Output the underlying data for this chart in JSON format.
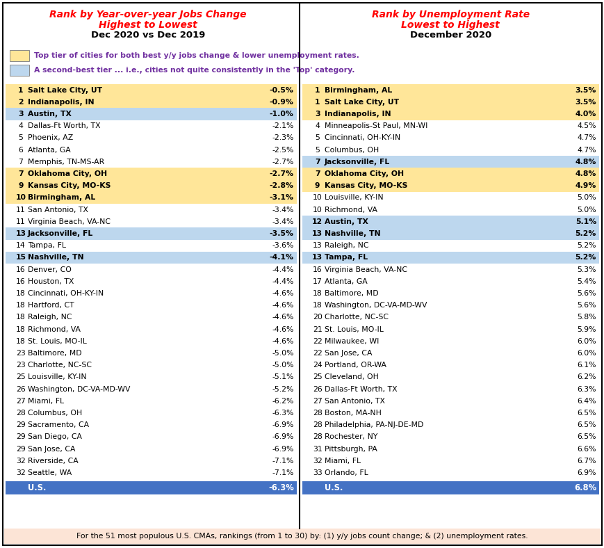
{
  "left_title1": "Rank by Year-over-year Jobs Change",
  "left_title2": "Highest to Lowest",
  "left_subtitle": "Dec 2020 vs Dec 2019",
  "right_title1": "Rank by Unemployment Rate",
  "right_title2": "Lowest to Highest",
  "right_subtitle": "December 2020",
  "legend_gold_text": "Top tier of cities for both best y/y jobs change & lower unemployment rates.",
  "legend_blue_text": "A second-best tier ... i.e., cities not quite consistently in the 'Top' category.",
  "footer_text": "For the 51 most populous U.S. CMAs, rankings (from 1 to 30) by: (1) y/y jobs count change; & (2) unemployment rates.",
  "left_data": [
    {
      "rank": "1",
      "city": "Salt Lake City, UT",
      "value": "-0.5%",
      "bg": "gold"
    },
    {
      "rank": "2",
      "city": "Indianapolis, IN",
      "value": "-0.9%",
      "bg": "gold"
    },
    {
      "rank": "3",
      "city": "Austin, TX",
      "value": "-1.0%",
      "bg": "blue"
    },
    {
      "rank": "4",
      "city": "Dallas-Ft Worth, TX",
      "value": "-2.1%",
      "bg": "white"
    },
    {
      "rank": "5",
      "city": "Phoenix, AZ",
      "value": "-2.3%",
      "bg": "white"
    },
    {
      "rank": "6",
      "city": "Atlanta, GA",
      "value": "-2.5%",
      "bg": "white"
    },
    {
      "rank": "7",
      "city": "Memphis, TN-MS-AR",
      "value": "-2.7%",
      "bg": "white"
    },
    {
      "rank": "7",
      "city": "Oklahoma City, OH",
      "value": "-2.7%",
      "bg": "gold"
    },
    {
      "rank": "9",
      "city": "Kansas City, MO-KS",
      "value": "-2.8%",
      "bg": "gold"
    },
    {
      "rank": "10",
      "city": "Birmingham, AL",
      "value": "-3.1%",
      "bg": "gold"
    },
    {
      "rank": "11",
      "city": "San Antonio, TX",
      "value": "-3.4%",
      "bg": "white"
    },
    {
      "rank": "11",
      "city": "Virginia Beach, VA-NC",
      "value": "-3.4%",
      "bg": "white"
    },
    {
      "rank": "13",
      "city": "Jacksonville, FL",
      "value": "-3.5%",
      "bg": "blue"
    },
    {
      "rank": "14",
      "city": "Tampa, FL",
      "value": "-3.6%",
      "bg": "white"
    },
    {
      "rank": "15",
      "city": "Nashville, TN",
      "value": "-4.1%",
      "bg": "blue"
    },
    {
      "rank": "16",
      "city": "Denver, CO",
      "value": "-4.4%",
      "bg": "white"
    },
    {
      "rank": "16",
      "city": "Houston, TX",
      "value": "-4.4%",
      "bg": "white"
    },
    {
      "rank": "18",
      "city": "Cincinnati, OH-KY-IN",
      "value": "-4.6%",
      "bg": "white"
    },
    {
      "rank": "18",
      "city": "Hartford, CT",
      "value": "-4.6%",
      "bg": "white"
    },
    {
      "rank": "18",
      "city": "Raleigh, NC",
      "value": "-4.6%",
      "bg": "white"
    },
    {
      "rank": "18",
      "city": "Richmond, VA",
      "value": "-4.6%",
      "bg": "white"
    },
    {
      "rank": "18",
      "city": "St. Louis, MO-IL",
      "value": "-4.6%",
      "bg": "white"
    },
    {
      "rank": "23",
      "city": "Baltimore, MD",
      "value": "-5.0%",
      "bg": "white"
    },
    {
      "rank": "23",
      "city": "Charlotte, NC-SC",
      "value": "-5.0%",
      "bg": "white"
    },
    {
      "rank": "25",
      "city": "Louisville, KY-IN",
      "value": "-5.1%",
      "bg": "white"
    },
    {
      "rank": "26",
      "city": "Washington, DC-VA-MD-WV",
      "value": "-5.2%",
      "bg": "white"
    },
    {
      "rank": "27",
      "city": "Miami, FL",
      "value": "-6.2%",
      "bg": "white"
    },
    {
      "rank": "28",
      "city": "Columbus, OH",
      "value": "-6.3%",
      "bg": "white"
    },
    {
      "rank": "29",
      "city": "Sacramento, CA",
      "value": "-6.9%",
      "bg": "white"
    },
    {
      "rank": "29",
      "city": "San Diego, CA",
      "value": "-6.9%",
      "bg": "white"
    },
    {
      "rank": "29",
      "city": "San Jose, CA",
      "value": "-6.9%",
      "bg": "white"
    },
    {
      "rank": "32",
      "city": "Riverside, CA",
      "value": "-7.1%",
      "bg": "white"
    },
    {
      "rank": "32",
      "city": "Seattle, WA",
      "value": "-7.1%",
      "bg": "white"
    }
  ],
  "left_us": {
    "label": "U.S.",
    "value": "-6.3%"
  },
  "right_data": [
    {
      "rank": "1",
      "city": "Birmingham, AL",
      "value": "3.5%",
      "bg": "gold"
    },
    {
      "rank": "1",
      "city": "Salt Lake City, UT",
      "value": "3.5%",
      "bg": "gold"
    },
    {
      "rank": "3",
      "city": "Indianapolis, IN",
      "value": "4.0%",
      "bg": "gold"
    },
    {
      "rank": "4",
      "city": "Minneapolis-St Paul, MN-WI",
      "value": "4.5%",
      "bg": "white"
    },
    {
      "rank": "5",
      "city": "Cincinnati, OH-KY-IN",
      "value": "4.7%",
      "bg": "white"
    },
    {
      "rank": "5",
      "city": "Columbus, OH",
      "value": "4.7%",
      "bg": "white"
    },
    {
      "rank": "7",
      "city": "Jacksonville, FL",
      "value": "4.8%",
      "bg": "blue"
    },
    {
      "rank": "7",
      "city": "Oklahoma City, OH",
      "value": "4.8%",
      "bg": "gold"
    },
    {
      "rank": "9",
      "city": "Kansas City, MO-KS",
      "value": "4.9%",
      "bg": "gold"
    },
    {
      "rank": "10",
      "city": "Louisville, KY-IN",
      "value": "5.0%",
      "bg": "white"
    },
    {
      "rank": "10",
      "city": "Richmond, VA",
      "value": "5.0%",
      "bg": "white"
    },
    {
      "rank": "12",
      "city": "Austin, TX",
      "value": "5.1%",
      "bg": "blue"
    },
    {
      "rank": "13",
      "city": "Nashville, TN",
      "value": "5.2%",
      "bg": "blue"
    },
    {
      "rank": "13",
      "city": "Raleigh, NC",
      "value": "5.2%",
      "bg": "white"
    },
    {
      "rank": "13",
      "city": "Tampa, FL",
      "value": "5.2%",
      "bg": "blue"
    },
    {
      "rank": "16",
      "city": "Virginia Beach, VA-NC",
      "value": "5.3%",
      "bg": "white"
    },
    {
      "rank": "17",
      "city": "Atlanta, GA",
      "value": "5.4%",
      "bg": "white"
    },
    {
      "rank": "18",
      "city": "Baltimore, MD",
      "value": "5.6%",
      "bg": "white"
    },
    {
      "rank": "18",
      "city": "Washington, DC-VA-MD-WV",
      "value": "5.6%",
      "bg": "white"
    },
    {
      "rank": "20",
      "city": "Charlotte, NC-SC",
      "value": "5.8%",
      "bg": "white"
    },
    {
      "rank": "21",
      "city": "St. Louis, MO-IL",
      "value": "5.9%",
      "bg": "white"
    },
    {
      "rank": "22",
      "city": "Milwaukee, WI",
      "value": "6.0%",
      "bg": "white"
    },
    {
      "rank": "22",
      "city": "San Jose, CA",
      "value": "6.0%",
      "bg": "white"
    },
    {
      "rank": "24",
      "city": "Portland, OR-WA",
      "value": "6.1%",
      "bg": "white"
    },
    {
      "rank": "25",
      "city": "Cleveland, OH",
      "value": "6.2%",
      "bg": "white"
    },
    {
      "rank": "26",
      "city": "Dallas-Ft Worth, TX",
      "value": "6.3%",
      "bg": "white"
    },
    {
      "rank": "27",
      "city": "San Antonio, TX",
      "value": "6.4%",
      "bg": "white"
    },
    {
      "rank": "28",
      "city": "Boston, MA-NH",
      "value": "6.5%",
      "bg": "white"
    },
    {
      "rank": "28",
      "city": "Philadelphia, PA-NJ-DE-MD",
      "value": "6.5%",
      "bg": "white"
    },
    {
      "rank": "28",
      "city": "Rochester, NY",
      "value": "6.5%",
      "bg": "white"
    },
    {
      "rank": "31",
      "city": "Pittsburgh, PA",
      "value": "6.6%",
      "bg": "white"
    },
    {
      "rank": "32",
      "city": "Miami, FL",
      "value": "6.7%",
      "bg": "white"
    },
    {
      "rank": "33",
      "city": "Orlando, FL",
      "value": "6.9%",
      "bg": "white"
    }
  ],
  "right_us": {
    "label": "U.S.",
    "value": "6.8%"
  },
  "color_gold": "#FFE699",
  "color_blue": "#BDD7EE",
  "color_white": "#FFFFFF",
  "color_us_bg": "#4472C4",
  "color_us_text": "#FFFFFF",
  "color_red": "#FF0000",
  "color_purple": "#7030A0",
  "color_footer_bg": "#FCE4D6",
  "color_border": "#000000"
}
